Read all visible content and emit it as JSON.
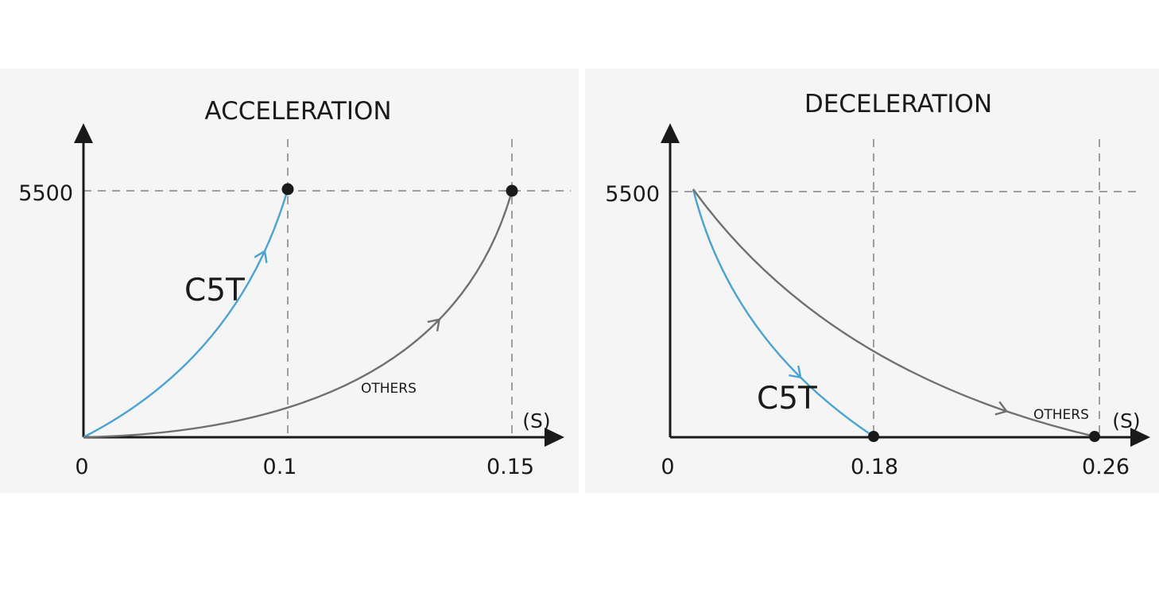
{
  "chart_data": [
    {
      "type": "line",
      "title": "ACCELERATION",
      "unit": "(S)",
      "x_ticks": [
        "0",
        "0.1",
        "0.15"
      ],
      "y_ticks": [
        "5500"
      ],
      "series": [
        {
          "name": "C5T",
          "x": [
            0,
            0.1
          ],
          "y": [
            0,
            5500
          ],
          "curve": "accelerating",
          "color": "#4aa3d2"
        },
        {
          "name": "OTHERS",
          "x": [
            0,
            0.15
          ],
          "y": [
            0,
            5500
          ],
          "curve": "accelerating",
          "color": "#707070"
        }
      ]
    },
    {
      "type": "line",
      "title": "DECELERATION",
      "unit": "(S)",
      "x_ticks": [
        "0",
        "0.18",
        "0.26"
      ],
      "y_ticks": [
        "5500"
      ],
      "series": [
        {
          "name": "C5T",
          "x": [
            0.01,
            0.18
          ],
          "y": [
            5500,
            0
          ],
          "curve": "decelerating",
          "color": "#4aa3d2"
        },
        {
          "name": "OTHERS",
          "x": [
            0.01,
            0.26
          ],
          "y": [
            5500,
            0
          ],
          "curve": "decelerating",
          "color": "#707070"
        }
      ]
    }
  ]
}
